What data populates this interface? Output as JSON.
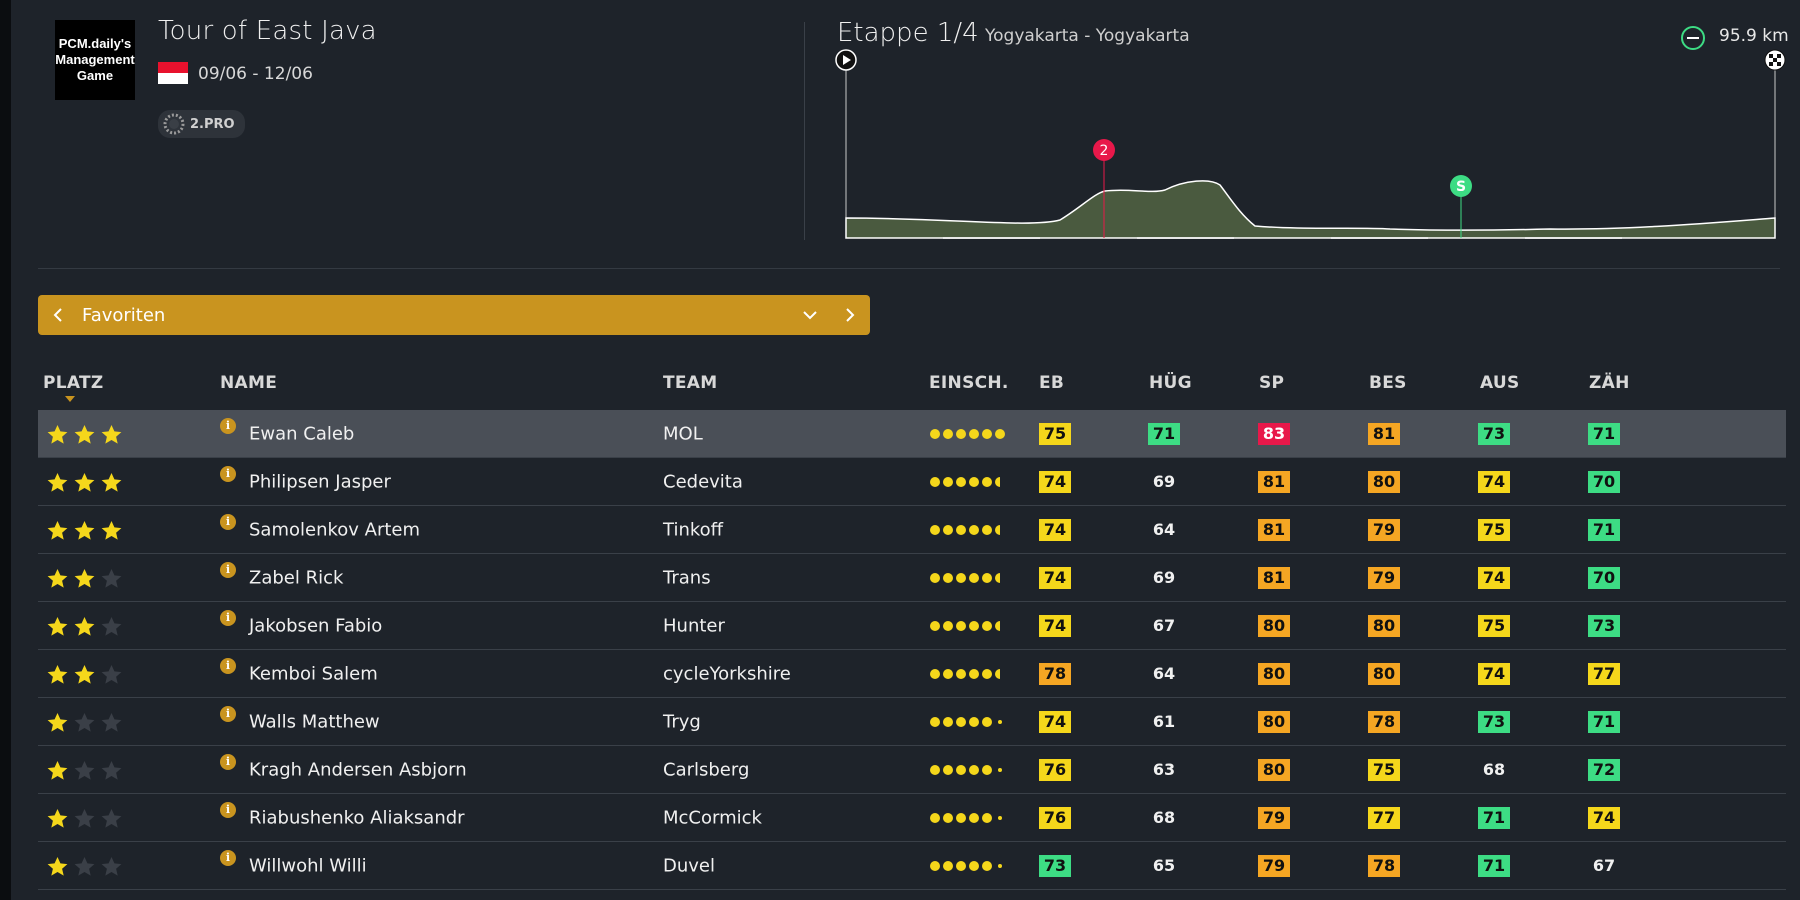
{
  "race": {
    "logo_text": "PCM.daily's Management Game",
    "title": "Tour of East Java",
    "dates": "09/06 - 12/06",
    "class": "2.PRO"
  },
  "stage": {
    "title": "Etappe 1/4",
    "route": "Yogyakarta - Yogyakarta",
    "distance": "95.9 km",
    "markers": {
      "climb": "2",
      "sprint": "S"
    }
  },
  "selector": {
    "label": "Favoriten"
  },
  "colors": {
    "yellow": "#f5d71b",
    "orange": "#f5a623",
    "green": "#3ddc84",
    "red": "#e8184a",
    "accent": "#c9941f"
  },
  "table": {
    "headers": {
      "platz": "PLATZ",
      "name": "NAME",
      "team": "TEAM",
      "einsch": "EINSCH.",
      "eb": "EB",
      "hug": "HÜG",
      "sp": "SP",
      "bes": "BES",
      "aus": "AUS",
      "zah": "ZÄH"
    },
    "rows": [
      {
        "stars": 3,
        "name": "Ewan Caleb",
        "team": "MOL",
        "dots": "6",
        "eb": "75",
        "hug": "71",
        "sp": "83",
        "bes": "81",
        "aus": "73",
        "zah": "71",
        "c": [
          "yellow",
          "green",
          "red",
          "orange",
          "green",
          "green"
        ]
      },
      {
        "stars": 3,
        "name": "Philipsen Jasper",
        "team": "Cedevita",
        "dots": "5.5",
        "eb": "74",
        "hug": "69",
        "sp": "81",
        "bes": "80",
        "aus": "74",
        "zah": "70",
        "c": [
          "yellow",
          "plain",
          "orange",
          "orange",
          "yellow",
          "green"
        ]
      },
      {
        "stars": 3,
        "name": "Samolenkov Artem",
        "team": "Tinkoff",
        "dots": "5.5",
        "eb": "74",
        "hug": "64",
        "sp": "81",
        "bes": "79",
        "aus": "75",
        "zah": "71",
        "c": [
          "yellow",
          "plain",
          "orange",
          "orange",
          "yellow",
          "green"
        ]
      },
      {
        "stars": 2,
        "name": "Zabel Rick",
        "team": "Trans",
        "dots": "5.5",
        "eb": "74",
        "hug": "69",
        "sp": "81",
        "bes": "79",
        "aus": "74",
        "zah": "70",
        "c": [
          "yellow",
          "plain",
          "orange",
          "orange",
          "yellow",
          "green"
        ]
      },
      {
        "stars": 2,
        "name": "Jakobsen Fabio",
        "team": "Hunter",
        "dots": "5.5",
        "eb": "74",
        "hug": "67",
        "sp": "80",
        "bes": "80",
        "aus": "75",
        "zah": "73",
        "c": [
          "yellow",
          "plain",
          "orange",
          "orange",
          "yellow",
          "green"
        ]
      },
      {
        "stars": 2,
        "name": "Kemboi Salem",
        "team": "cycleYorkshire",
        "dots": "5.5",
        "eb": "78",
        "hug": "64",
        "sp": "80",
        "bes": "80",
        "aus": "74",
        "zah": "77",
        "c": [
          "orange",
          "plain",
          "orange",
          "orange",
          "yellow",
          "yellow"
        ]
      },
      {
        "stars": 1,
        "name": "Walls Matthew",
        "team": "Tryg",
        "dots": "5",
        "eb": "74",
        "hug": "61",
        "sp": "80",
        "bes": "78",
        "aus": "73",
        "zah": "71",
        "c": [
          "yellow",
          "plain",
          "orange",
          "orange",
          "green",
          "green"
        ]
      },
      {
        "stars": 1,
        "name": "Kragh Andersen Asbjorn",
        "team": "Carlsberg",
        "dots": "5",
        "eb": "76",
        "hug": "63",
        "sp": "80",
        "bes": "75",
        "aus": "68",
        "zah": "72",
        "c": [
          "yellow",
          "plain",
          "orange",
          "yellow",
          "plain",
          "green"
        ]
      },
      {
        "stars": 1,
        "name": "Riabushenko Aliaksandr",
        "team": "McCormick",
        "dots": "5",
        "eb": "76",
        "hug": "68",
        "sp": "79",
        "bes": "77",
        "aus": "71",
        "zah": "74",
        "c": [
          "yellow",
          "plain",
          "orange",
          "yellow",
          "green",
          "yellow"
        ]
      },
      {
        "stars": 1,
        "name": "Willwohl Willi",
        "team": "Duvel",
        "dots": "5",
        "eb": "73",
        "hug": "65",
        "sp": "79",
        "bes": "78",
        "aus": "71",
        "zah": "67",
        "c": [
          "green",
          "plain",
          "orange",
          "orange",
          "green",
          "plain"
        ]
      }
    ]
  }
}
